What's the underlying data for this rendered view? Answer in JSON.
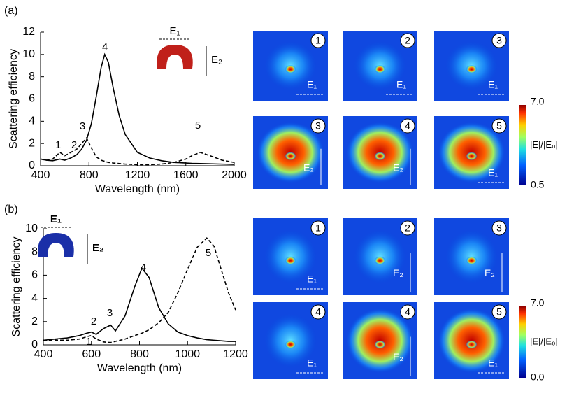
{
  "chart_data": [
    {
      "type": "line",
      "panel_label": "(a)",
      "xlabel": "Wavelength (nm)",
      "ylabel": "Scattering efficiency",
      "x": [
        400,
        450,
        500,
        560,
        600,
        650,
        700,
        740,
        780,
        820,
        860,
        900,
        930,
        960,
        1000,
        1050,
        1100,
        1200,
        1300,
        1400,
        1500,
        1600,
        1650,
        1720,
        1800,
        1900,
        2000
      ],
      "series": [
        {
          "color": "#000000",
          "dash": "solid",
          "values": [
            0.6,
            0.5,
            0.45,
            0.6,
            0.5,
            0.7,
            1.0,
            1.5,
            2.3,
            3.8,
            6.2,
            8.8,
            10.0,
            9.3,
            7.0,
            4.5,
            2.8,
            1.2,
            0.7,
            0.45,
            0.3,
            0.25,
            0.22,
            0.2,
            0.18,
            0.15,
            0.12
          ]
        },
        {
          "color": "#000000",
          "dash": "dashed",
          "values": [
            0.6,
            0.5,
            0.6,
            1.2,
            0.9,
            1.2,
            1.5,
            2.0,
            2.5,
            1.6,
            0.8,
            0.5,
            0.4,
            0.3,
            0.25,
            0.2,
            0.15,
            0.1,
            0.1,
            0.15,
            0.3,
            0.6,
            0.9,
            1.2,
            0.9,
            0.5,
            0.3
          ]
        }
      ],
      "xlim": [
        400,
        2000
      ],
      "xticks": [
        400,
        800,
        1200,
        1600,
        2000
      ],
      "ylim": [
        0,
        12
      ],
      "yticks": [
        0,
        2,
        4,
        6,
        8,
        10,
        12
      ],
      "annotations": [
        "1",
        "2",
        "3",
        "4",
        "5"
      ],
      "inset": {
        "e1": "E₁",
        "e2": "E₂",
        "color": "#c0201a"
      }
    },
    {
      "type": "line",
      "panel_label": "(b)",
      "xlabel": "Wavelength (nm)",
      "ylabel": "Scattering efficiency",
      "x": [
        400,
        450,
        500,
        550,
        580,
        600,
        620,
        650,
        680,
        700,
        740,
        780,
        810,
        840,
        880,
        920,
        960,
        1000,
        1040,
        1080,
        1110,
        1140,
        1170,
        1200
      ],
      "series": [
        {
          "color": "#000000",
          "dash": "solid",
          "values": [
            0.4,
            0.5,
            0.6,
            0.8,
            1.0,
            1.1,
            0.9,
            1.4,
            1.7,
            1.2,
            2.5,
            5.0,
            6.6,
            5.8,
            3.2,
            1.8,
            1.1,
            0.8,
            0.6,
            0.45,
            0.4,
            0.35,
            0.3,
            0.3
          ]
        },
        {
          "color": "#000000",
          "dash": "dashed",
          "values": [
            0.4,
            0.4,
            0.4,
            0.5,
            0.7,
            0.8,
            0.5,
            0.25,
            0.2,
            0.3,
            0.5,
            0.8,
            1.0,
            1.3,
            1.9,
            2.8,
            4.5,
            6.5,
            8.4,
            9.2,
            8.5,
            6.5,
            4.5,
            3.0
          ]
        }
      ],
      "xlim": [
        400,
        1200
      ],
      "xticks": [
        400,
        600,
        800,
        1000,
        1200
      ],
      "ylim": [
        0,
        10
      ],
      "yticks": [
        0,
        2,
        4,
        6,
        8,
        10
      ],
      "annotations": [
        "1",
        "2",
        "3",
        "4",
        "5"
      ],
      "inset": {
        "e1": "E₁",
        "e2": "E₂",
        "color": "#1a2fa8"
      }
    }
  ],
  "field_maps": [
    {
      "tiles": [
        {
          "number": "1",
          "field": "E₁"
        },
        {
          "number": "2",
          "field": "E₁"
        },
        {
          "number": "3",
          "field": "E₁"
        },
        {
          "number": "3",
          "field": "E₂"
        },
        {
          "number": "4",
          "field": "E₂"
        },
        {
          "number": "5",
          "field": "E₁"
        }
      ],
      "colorbar": {
        "max": "7.0",
        "min": "0.5",
        "label": "|E|/|E₀|"
      }
    },
    {
      "tiles": [
        {
          "number": "1",
          "field": "E₁"
        },
        {
          "number": "2",
          "field": "E₂"
        },
        {
          "number": "3",
          "field": "E₂"
        },
        {
          "number": "4",
          "field": "E₁"
        },
        {
          "number": "4",
          "field": "E₂"
        },
        {
          "number": "5",
          "field": "E₁"
        }
      ],
      "colorbar": {
        "max": "7.0",
        "min": "0.0",
        "label": "|E|/|E₀|"
      }
    }
  ]
}
